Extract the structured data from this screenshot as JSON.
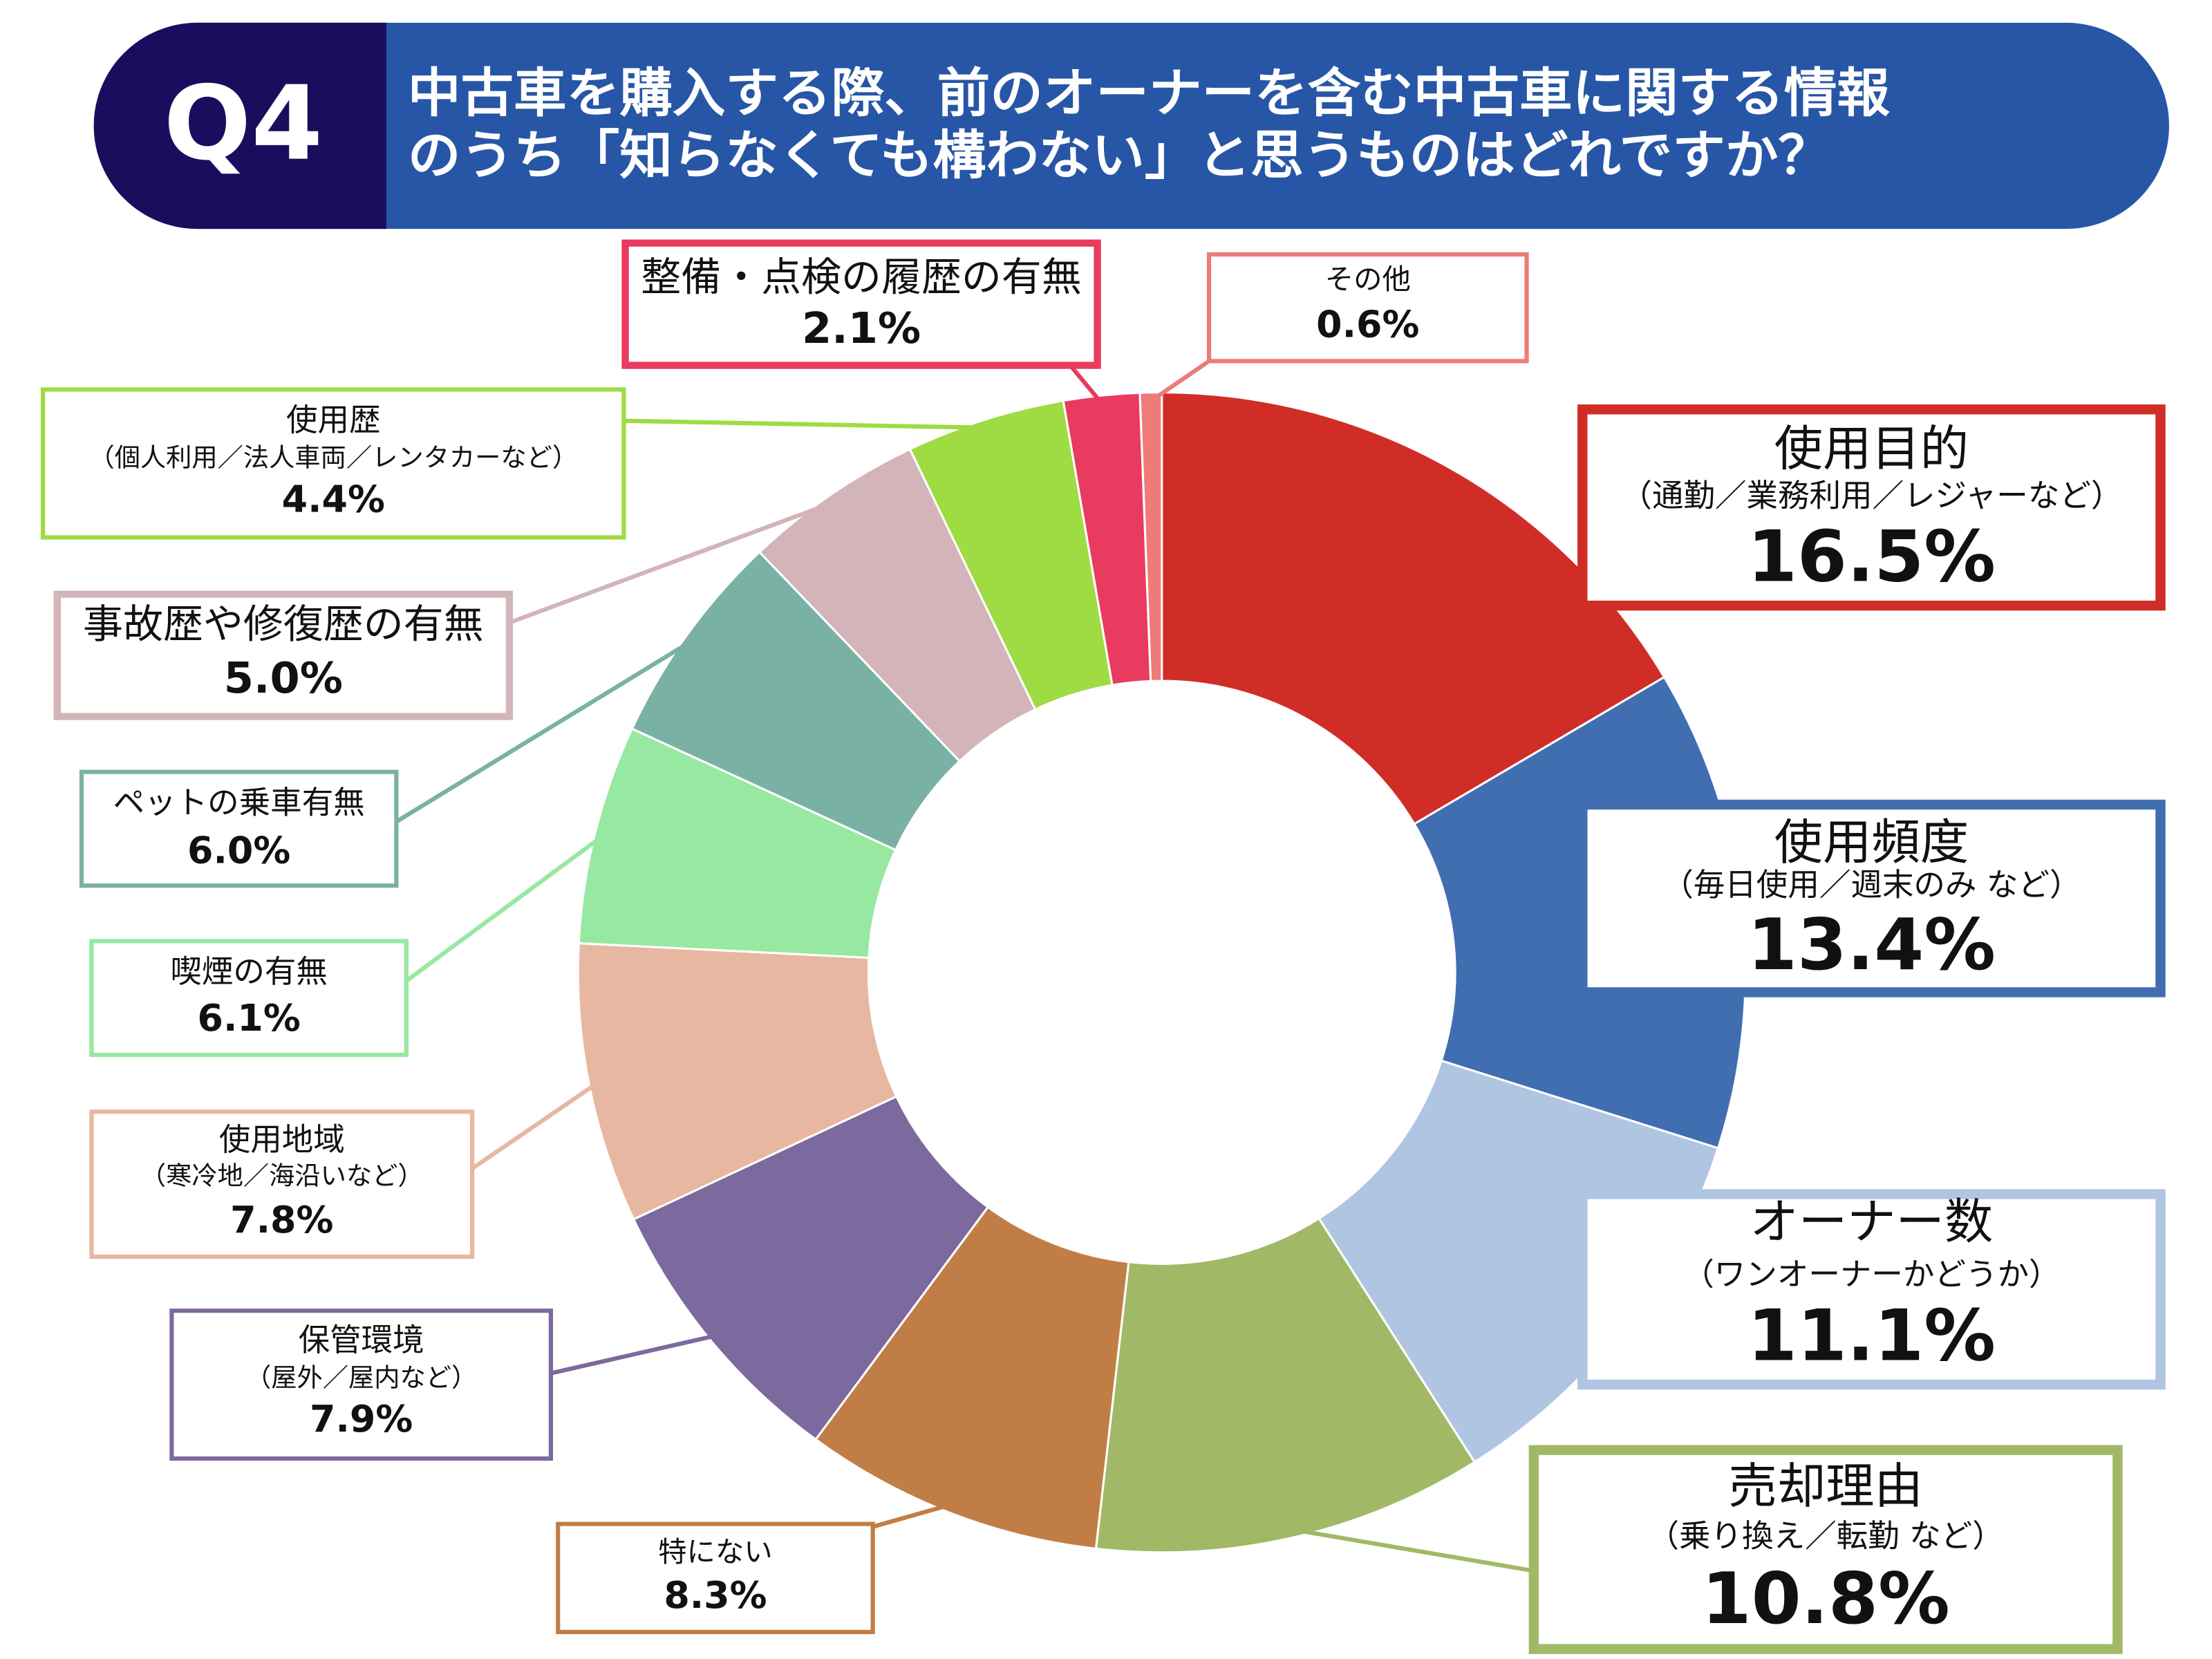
{
  "chart_data": {
    "type": "donut",
    "badge": "Q4",
    "title": [
      "中古車を購入する際、前のオーナーを含む中古車に関する情報",
      "のうち「知らなくても構わない」と思うものはどれですか？"
    ],
    "categories": [
      "使用目的",
      "使用頻度",
      "オーナー数",
      "売却理由",
      "特にない",
      "保管環境",
      "使用地域",
      "喫煙の有無",
      "ペットの乗車有無",
      "事故歴や修復歴の有無",
      "使用歴",
      "整備・点検の履歴の有無",
      "その他"
    ],
    "sublabels": [
      "（通勤／業務利用／レジャーなど）",
      "（毎日使用／週末のみ など）",
      "（ワンオーナーかどうか）",
      "（乗り換え／転勤 など）",
      null,
      "（屋外／屋内など）",
      "（寒冷地／海沿いなど）",
      null,
      null,
      null,
      "（個人利用／法人車両／レンタカーなど）",
      null,
      null
    ],
    "values": [
      16.5,
      13.4,
      11.1,
      10.8,
      8.3,
      7.9,
      7.8,
      6.1,
      6.0,
      5.0,
      4.4,
      2.1,
      0.6
    ],
    "value_labels": [
      "16.5%",
      "13.4%",
      "11.1%",
      "10.8%",
      "8.3%",
      "7.9%",
      "7.8%",
      "6.1%",
      "6.0%",
      "5.0%",
      "4.4%",
      "2.1%",
      "0.6%"
    ],
    "colors": [
      "#d12d27",
      "#416eb0",
      "#b0c5e2",
      "#a1b967",
      "#c07e46",
      "#7c699e",
      "#e8b7a1",
      "#97e8a0",
      "#79b2a4",
      "#d2b4b9",
      "#9fdb42",
      "#e93a5f",
      "#ee7b77"
    ]
  }
}
